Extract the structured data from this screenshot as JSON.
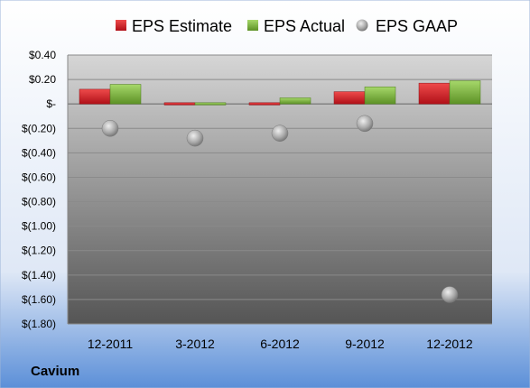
{
  "company": "Cavium",
  "colors": {
    "estimate": "#d91e2a",
    "actual": "#7fb83a",
    "gaap": "#a6a6a6",
    "background_top": "#ffffff",
    "background_bottom": "#5b8fd8"
  },
  "chart_data": {
    "type": "bar",
    "categories": [
      "12-2011",
      "3-2012",
      "6-2012",
      "9-2012",
      "12-2012"
    ],
    "series": [
      {
        "name": "EPS Estimate",
        "kind": "bar",
        "values": [
          0.12,
          0.01,
          0.01,
          0.1,
          0.17
        ]
      },
      {
        "name": "EPS Actual",
        "kind": "bar",
        "values": [
          0.16,
          0.01,
          0.05,
          0.14,
          0.19
        ]
      },
      {
        "name": "EPS GAAP",
        "kind": "scatter",
        "values": [
          -0.2,
          -0.28,
          -0.24,
          -0.16,
          -1.56
        ]
      }
    ],
    "ylim": [
      -1.8,
      0.4
    ],
    "yticks": [
      0.4,
      0.2,
      0.0,
      -0.2,
      -0.4,
      -0.6,
      -0.8,
      -1.0,
      -1.2,
      -1.4,
      -1.6,
      -1.8
    ],
    "ytick_labels": [
      "$0.40",
      "$0.20",
      "$-",
      "$(0.20)",
      "$(0.40)",
      "$(0.60)",
      "$(0.80)",
      "$(1.00)",
      "$(1.20)",
      "$(1.40)",
      "$(1.60)",
      "$(1.80)"
    ],
    "grid": true,
    "legend_position": "top"
  }
}
